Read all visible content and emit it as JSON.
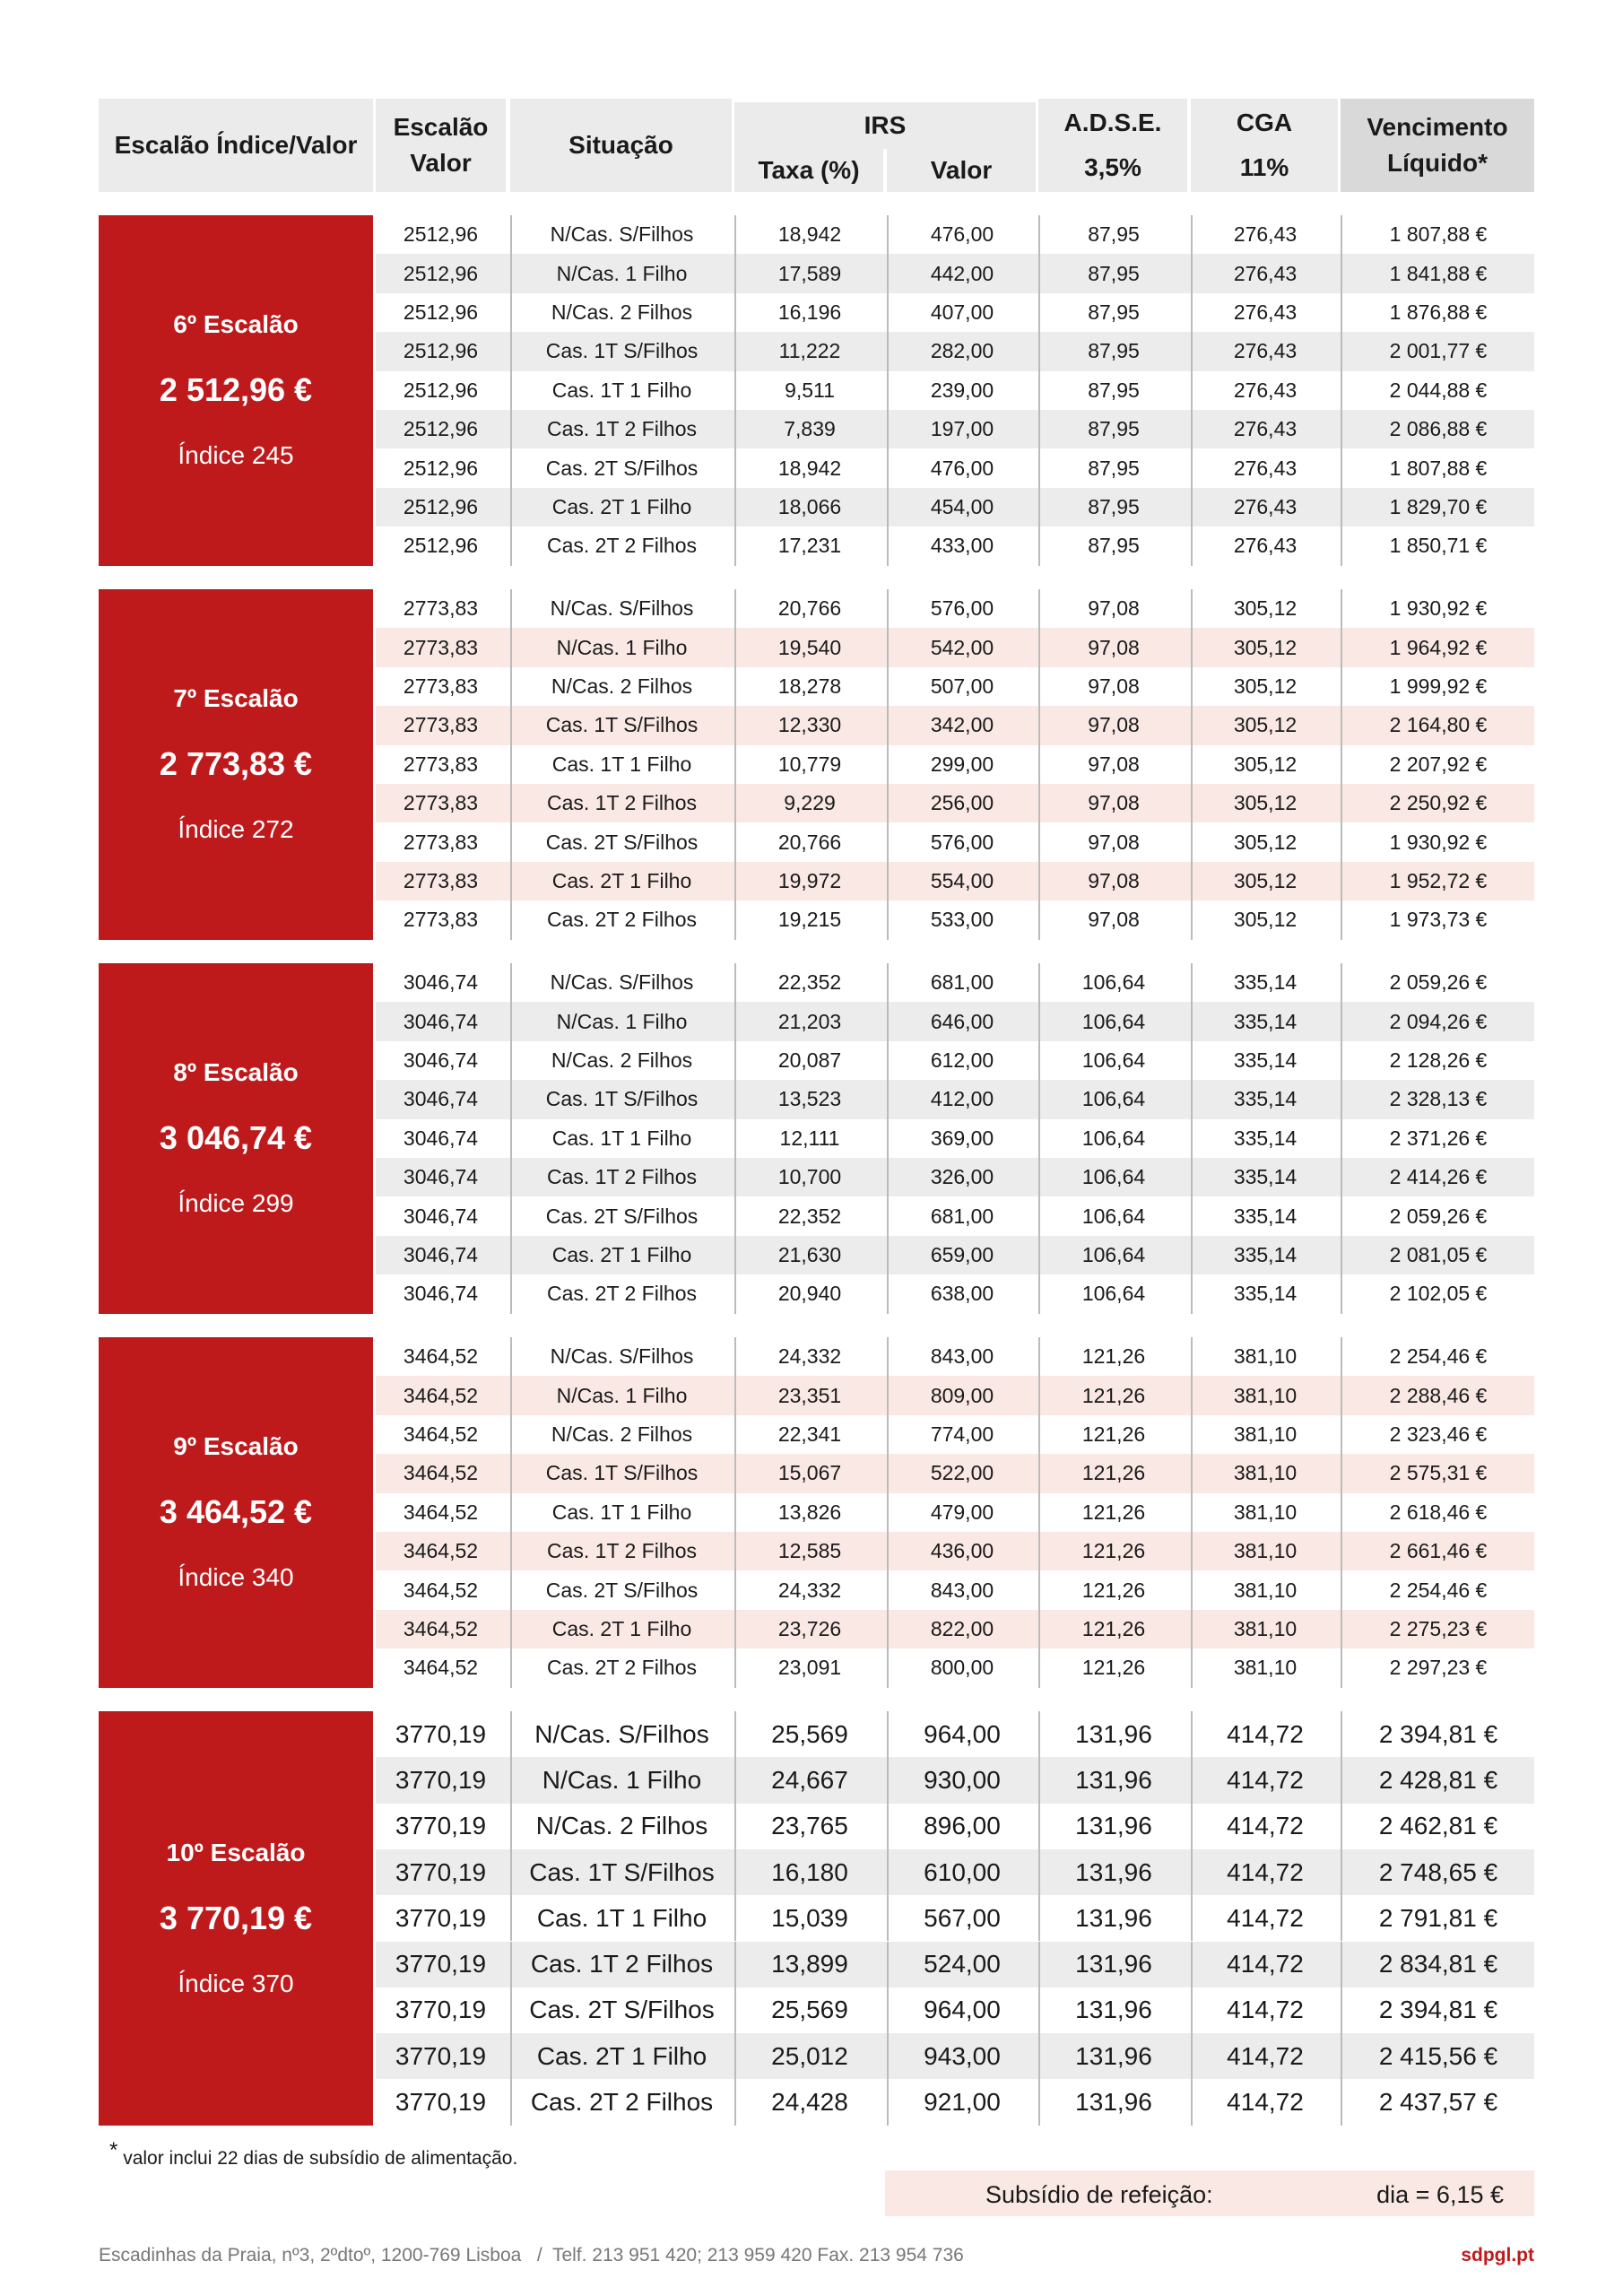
{
  "header": {
    "c1": "Escalão Índice/Valor",
    "c2": "Escalão Valor",
    "c3": "Situação",
    "irs": "IRS",
    "taxa": "Taxa (%)",
    "valor": "Valor",
    "adse": "A.D.S.E.",
    "adse_pct": "3,5%",
    "cga": "CGA",
    "cga_pct": "11%",
    "liq": "Vencimento Líquido*"
  },
  "colors": {
    "red": "#be1a1c",
    "grey_stripe": "#ececec",
    "pink_stripe": "#f9e8e3"
  },
  "blocks": [
    {
      "label": "6º Escalão",
      "value": "2 512,96 €",
      "indice": "Índice 245",
      "rows": [
        [
          "2512,96",
          "N/Cas. S/Filhos",
          "18,942",
          "476,00",
          "87,95",
          "276,43",
          "1 807,88 €"
        ],
        [
          "2512,96",
          "N/Cas. 1 Filho",
          "17,589",
          "442,00",
          "87,95",
          "276,43",
          "1 841,88 €"
        ],
        [
          "2512,96",
          "N/Cas. 2 Filhos",
          "16,196",
          "407,00",
          "87,95",
          "276,43",
          "1 876,88 €"
        ],
        [
          "2512,96",
          "Cas. 1T S/Filhos",
          "11,222",
          "282,00",
          "87,95",
          "276,43",
          "2 001,77 €"
        ],
        [
          "2512,96",
          "Cas. 1T 1 Filho",
          "9,511",
          "239,00",
          "87,95",
          "276,43",
          "2 044,88 €"
        ],
        [
          "2512,96",
          "Cas. 1T 2 Filhos",
          "7,839",
          "197,00",
          "87,95",
          "276,43",
          "2 086,88 €"
        ],
        [
          "2512,96",
          "Cas. 2T S/Filhos",
          "18,942",
          "476,00",
          "87,95",
          "276,43",
          "1 807,88 €"
        ],
        [
          "2512,96",
          "Cas. 2T 1 Filho",
          "18,066",
          "454,00",
          "87,95",
          "276,43",
          "1 829,70 €"
        ],
        [
          "2512,96",
          "Cas. 2T 2 Filhos",
          "17,231",
          "433,00",
          "87,95",
          "276,43",
          "1 850,71 €"
        ]
      ]
    },
    {
      "label": "7º Escalão",
      "value": "2 773,83 €",
      "indice": "Índice 272",
      "rows": [
        [
          "2773,83",
          "N/Cas. S/Filhos",
          "20,766",
          "576,00",
          "97,08",
          "305,12",
          "1 930,92 €"
        ],
        [
          "2773,83",
          "N/Cas. 1 Filho",
          "19,540",
          "542,00",
          "97,08",
          "305,12",
          "1 964,92 €"
        ],
        [
          "2773,83",
          "N/Cas. 2 Filhos",
          "18,278",
          "507,00",
          "97,08",
          "305,12",
          "1 999,92 €"
        ],
        [
          "2773,83",
          "Cas. 1T S/Filhos",
          "12,330",
          "342,00",
          "97,08",
          "305,12",
          "2 164,80 €"
        ],
        [
          "2773,83",
          "Cas. 1T 1 Filho",
          "10,779",
          "299,00",
          "97,08",
          "305,12",
          "2 207,92 €"
        ],
        [
          "2773,83",
          "Cas. 1T 2 Filhos",
          "9,229",
          "256,00",
          "97,08",
          "305,12",
          "2 250,92 €"
        ],
        [
          "2773,83",
          "Cas. 2T S/Filhos",
          "20,766",
          "576,00",
          "97,08",
          "305,12",
          "1 930,92 €"
        ],
        [
          "2773,83",
          "Cas. 2T 1 Filho",
          "19,972",
          "554,00",
          "97,08",
          "305,12",
          "1 952,72 €"
        ],
        [
          "2773,83",
          "Cas. 2T 2 Filhos",
          "19,215",
          "533,00",
          "97,08",
          "305,12",
          "1 973,73 €"
        ]
      ]
    },
    {
      "label": "8º Escalão",
      "value": "3 046,74 €",
      "indice": "Índice 299",
      "rows": [
        [
          "3046,74",
          "N/Cas. S/Filhos",
          "22,352",
          "681,00",
          "106,64",
          "335,14",
          "2 059,26 €"
        ],
        [
          "3046,74",
          "N/Cas. 1 Filho",
          "21,203",
          "646,00",
          "106,64",
          "335,14",
          "2 094,26 €"
        ],
        [
          "3046,74",
          "N/Cas. 2 Filhos",
          "20,087",
          "612,00",
          "106,64",
          "335,14",
          "2 128,26 €"
        ],
        [
          "3046,74",
          "Cas. 1T S/Filhos",
          "13,523",
          "412,00",
          "106,64",
          "335,14",
          "2 328,13 €"
        ],
        [
          "3046,74",
          "Cas. 1T 1 Filho",
          "12,111",
          "369,00",
          "106,64",
          "335,14",
          "2 371,26 €"
        ],
        [
          "3046,74",
          "Cas. 1T 2 Filhos",
          "10,700",
          "326,00",
          "106,64",
          "335,14",
          "2 414,26 €"
        ],
        [
          "3046,74",
          "Cas. 2T S/Filhos",
          "22,352",
          "681,00",
          "106,64",
          "335,14",
          "2 059,26 €"
        ],
        [
          "3046,74",
          "Cas. 2T 1 Filho",
          "21,630",
          "659,00",
          "106,64",
          "335,14",
          "2 081,05 €"
        ],
        [
          "3046,74",
          "Cas. 2T 2 Filhos",
          "20,940",
          "638,00",
          "106,64",
          "335,14",
          "2 102,05 €"
        ]
      ]
    },
    {
      "label": "9º Escalão",
      "value": "3 464,52 €",
      "indice": "Índice 340",
      "rows": [
        [
          "3464,52",
          "N/Cas. S/Filhos",
          "24,332",
          "843,00",
          "121,26",
          "381,10",
          "2 254,46 €"
        ],
        [
          "3464,52",
          "N/Cas. 1 Filho",
          "23,351",
          "809,00",
          "121,26",
          "381,10",
          "2 288,46 €"
        ],
        [
          "3464,52",
          "N/Cas. 2 Filhos",
          "22,341",
          "774,00",
          "121,26",
          "381,10",
          "2 323,46 €"
        ],
        [
          "3464,52",
          "Cas. 1T S/Filhos",
          "15,067",
          "522,00",
          "121,26",
          "381,10",
          "2 575,31 €"
        ],
        [
          "3464,52",
          "Cas. 1T 1 Filho",
          "13,826",
          "479,00",
          "121,26",
          "381,10",
          "2 618,46 €"
        ],
        [
          "3464,52",
          "Cas. 1T 2 Filhos",
          "12,585",
          "436,00",
          "121,26",
          "381,10",
          "2 661,46 €"
        ],
        [
          "3464,52",
          "Cas. 2T S/Filhos",
          "24,332",
          "843,00",
          "121,26",
          "381,10",
          "2 254,46 €"
        ],
        [
          "3464,52",
          "Cas. 2T 1 Filho",
          "23,726",
          "822,00",
          "121,26",
          "381,10",
          "2 275,23 €"
        ],
        [
          "3464,52",
          "Cas. 2T 2 Filhos",
          "23,091",
          "800,00",
          "121,26",
          "381,10",
          "2 297,23 €"
        ]
      ]
    },
    {
      "label": "10º Escalão",
      "value": "3 770,19 €",
      "indice": "Índice 370",
      "rows": [
        [
          "3770,19",
          "N/Cas. S/Filhos",
          "25,569",
          "964,00",
          "131,96",
          "414,72",
          "2 394,81 €"
        ],
        [
          "3770,19",
          "N/Cas. 1 Filho",
          "24,667",
          "930,00",
          "131,96",
          "414,72",
          "2 428,81 €"
        ],
        [
          "3770,19",
          "N/Cas. 2 Filhos",
          "23,765",
          "896,00",
          "131,96",
          "414,72",
          "2 462,81 €"
        ],
        [
          "3770,19",
          "Cas. 1T S/Filhos",
          "16,180",
          "610,00",
          "131,96",
          "414,72",
          "2 748,65 €"
        ],
        [
          "3770,19",
          "Cas. 1T 1 Filho",
          "15,039",
          "567,00",
          "131,96",
          "414,72",
          "2 791,81 €"
        ],
        [
          "3770,19",
          "Cas. 1T 2 Filhos",
          "13,899",
          "524,00",
          "131,96",
          "414,72",
          "2 834,81 €"
        ],
        [
          "3770,19",
          "Cas. 2T S/Filhos",
          "25,569",
          "964,00",
          "131,96",
          "414,72",
          "2 394,81 €"
        ],
        [
          "3770,19",
          "Cas. 2T 1 Filho",
          "25,012",
          "943,00",
          "131,96",
          "414,72",
          "2 415,56 €"
        ],
        [
          "3770,19",
          "Cas. 2T 2 Filhos",
          "24,428",
          "921,00",
          "131,96",
          "414,72",
          "2 437,57 €"
        ]
      ]
    }
  ],
  "footnote": {
    "mark": "*",
    "text": "valor inclui 22 dias de subsídio de alimentação."
  },
  "subsidio": {
    "label": "Subsídio de refeição:",
    "value": "dia = 6,15 €"
  },
  "footer": {
    "address": "Escadinhas da Praia, nº3, 2ºdtoº, 1200-769 Lisboa   /  Telf. 213 951 420; 213 959 420 Fax. 213 954 736",
    "site": "sdpgl.pt"
  }
}
